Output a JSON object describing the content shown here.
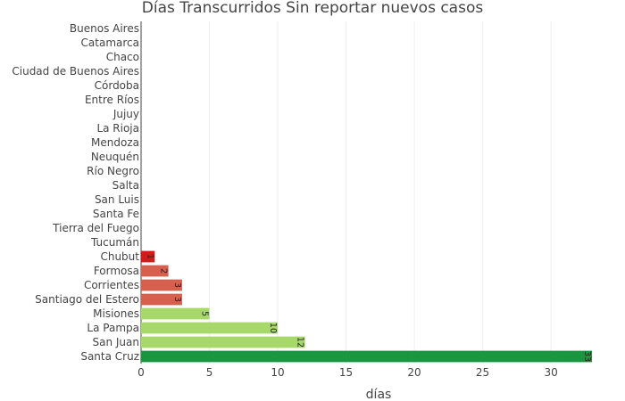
{
  "chart_data": {
    "type": "bar",
    "orientation": "horizontal",
    "title": "Días Transcurridos Sin reportar nuevos casos",
    "xlabel": "días",
    "ylabel": "",
    "xlim": [
      0,
      33
    ],
    "x_ticks": [
      0,
      5,
      10,
      15,
      20,
      25,
      30
    ],
    "grid": true,
    "categories": [
      "Buenos Aires",
      "Catamarca",
      "Chaco",
      "Ciudad de Buenos Aires",
      "Córdoba",
      "Entre Ríos",
      "Jujuy",
      "La Rioja",
      "Mendoza",
      "Neuquén",
      "Río Negro",
      "Salta",
      "San Luis",
      "Santa Fe",
      "Tierra del Fuego",
      "Tucumán",
      "Chubut",
      "Formosa",
      "Corrientes",
      "Santiago del Estero",
      "Misiones",
      "La Pampa",
      "San Juan",
      "Santa Cruz"
    ],
    "values": [
      0,
      0,
      0,
      0,
      0,
      0,
      0,
      0,
      0,
      0,
      0,
      0,
      0,
      0,
      0,
      0,
      1,
      2,
      3,
      3,
      5,
      10,
      12,
      33
    ],
    "bar_colors": [
      "#d62728",
      "#d62728",
      "#d62728",
      "#d62728",
      "#d62728",
      "#d62728",
      "#d62728",
      "#d62728",
      "#d62728",
      "#d62728",
      "#d62728",
      "#d62728",
      "#d62728",
      "#d62728",
      "#d62728",
      "#d62728",
      "#d7191c",
      "#d6604d",
      "#d6604d",
      "#d6604d",
      "#a6d96a",
      "#a6d96a",
      "#a6d96a",
      "#1a9641"
    ],
    "data_labels": [
      "",
      "",
      "",
      "",
      "",
      "",
      "",
      "",
      "",
      "",
      "",
      "",
      "",
      "",
      "",
      "",
      "1",
      "2",
      "3",
      "3",
      "5",
      "10",
      "12",
      "33"
    ]
  }
}
